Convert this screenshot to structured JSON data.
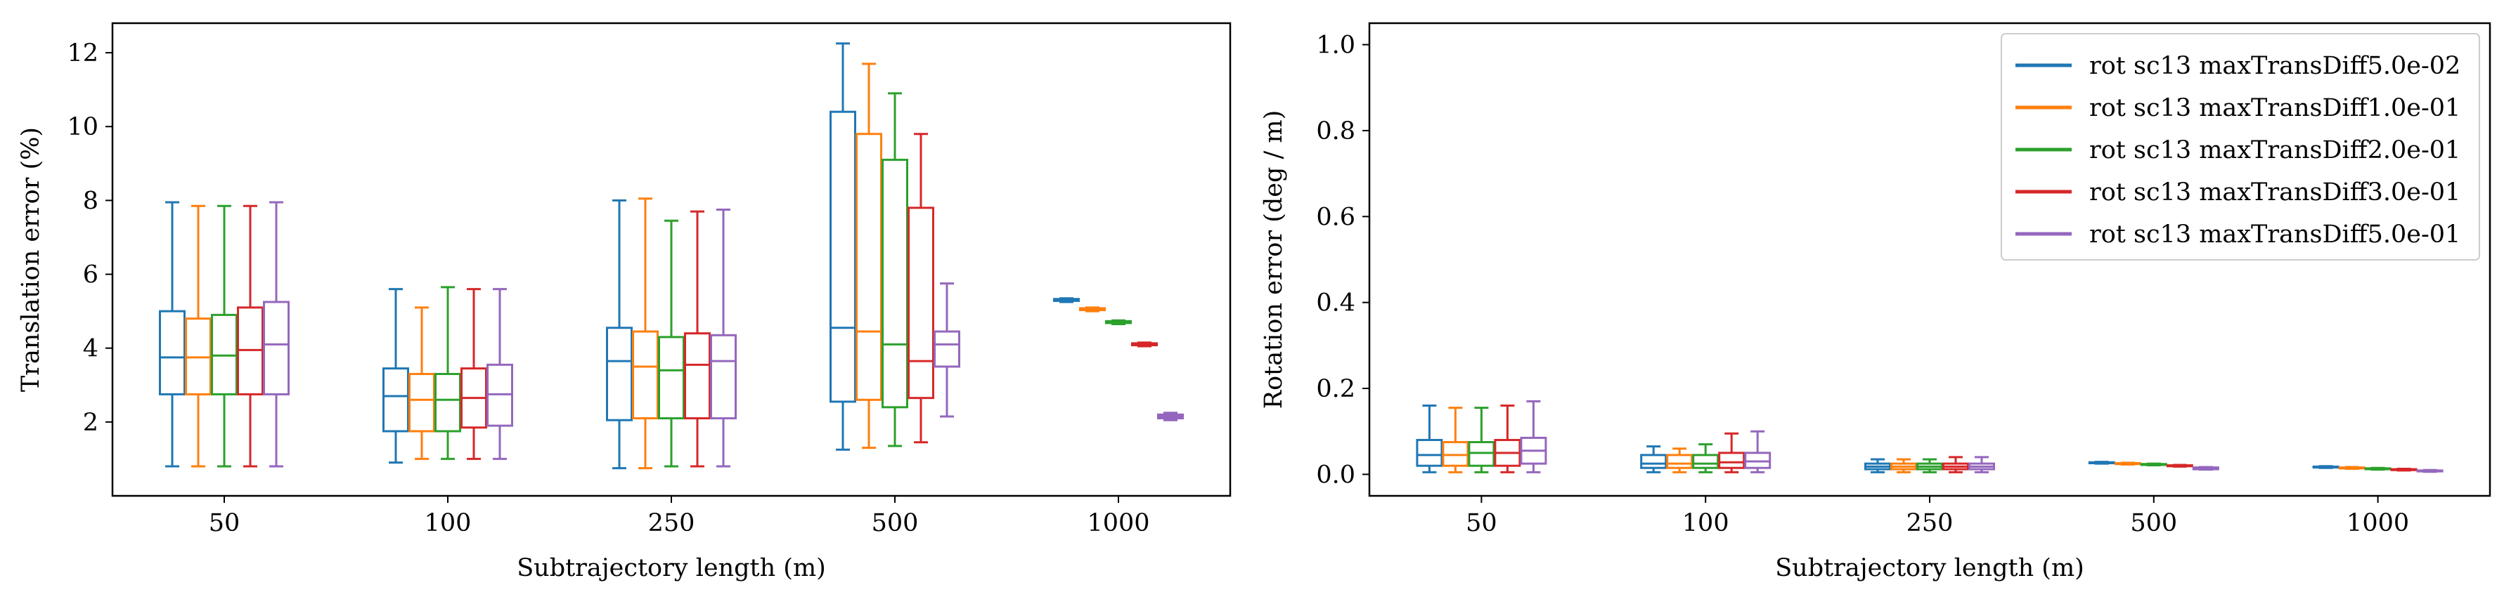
{
  "chart_data": [
    {
      "type": "box",
      "xlabel": "Subtrajectory length (m)",
      "ylabel": "Translation error (%)",
      "categories": [
        "50",
        "100",
        "250",
        "500",
        "1000"
      ],
      "ylim": [
        0,
        12.8
      ],
      "yticks": [
        2,
        4,
        6,
        8,
        10,
        12
      ],
      "yticklabels": [
        "2",
        "4",
        "6",
        "8",
        "10",
        "12"
      ],
      "series": [
        {
          "name": "rot sc13 maxTransDiff5.0e-02",
          "color": "#1f77b4",
          "boxes": [
            {
              "whislo": 0.8,
              "q1": 2.75,
              "med": 3.75,
              "q3": 5.0,
              "whishi": 7.95
            },
            {
              "whislo": 0.9,
              "q1": 1.75,
              "med": 2.7,
              "q3": 3.45,
              "whishi": 5.6
            },
            {
              "whislo": 0.75,
              "q1": 2.05,
              "med": 3.65,
              "q3": 4.55,
              "whishi": 8.0
            },
            {
              "whislo": 1.25,
              "q1": 2.55,
              "med": 4.55,
              "q3": 10.4,
              "whishi": 12.25
            },
            {
              "whislo": 5.25,
              "q1": 5.28,
              "med": 5.3,
              "q3": 5.33,
              "whishi": 5.35
            }
          ]
        },
        {
          "name": "rot sc13 maxTransDiff1.0e-01",
          "color": "#ff7f0e",
          "boxes": [
            {
              "whislo": 0.8,
              "q1": 2.75,
              "med": 3.75,
              "q3": 4.8,
              "whishi": 7.85
            },
            {
              "whislo": 1.0,
              "q1": 1.75,
              "med": 2.6,
              "q3": 3.3,
              "whishi": 5.1
            },
            {
              "whislo": 0.75,
              "q1": 2.1,
              "med": 3.5,
              "q3": 4.45,
              "whishi": 8.05
            },
            {
              "whislo": 1.3,
              "q1": 2.6,
              "med": 4.45,
              "q3": 9.8,
              "whishi": 11.7
            },
            {
              "whislo": 5.0,
              "q1": 5.03,
              "med": 5.05,
              "q3": 5.08,
              "whishi": 5.1
            }
          ]
        },
        {
          "name": "rot sc13 maxTransDiff2.0e-01",
          "color": "#2ca02c",
          "boxes": [
            {
              "whislo": 0.8,
              "q1": 2.75,
              "med": 3.8,
              "q3": 4.9,
              "whishi": 7.85
            },
            {
              "whislo": 1.0,
              "q1": 1.75,
              "med": 2.6,
              "q3": 3.3,
              "whishi": 5.65
            },
            {
              "whislo": 0.8,
              "q1": 2.1,
              "med": 3.4,
              "q3": 4.3,
              "whishi": 7.45
            },
            {
              "whislo": 1.35,
              "q1": 2.4,
              "med": 4.1,
              "q3": 9.1,
              "whishi": 10.9
            },
            {
              "whislo": 4.65,
              "q1": 4.68,
              "med": 4.7,
              "q3": 4.73,
              "whishi": 4.75
            }
          ]
        },
        {
          "name": "rot sc13 maxTransDiff3.0e-01",
          "color": "#d62728",
          "boxes": [
            {
              "whislo": 0.8,
              "q1": 2.75,
              "med": 3.95,
              "q3": 5.1,
              "whishi": 7.85
            },
            {
              "whislo": 1.0,
              "q1": 1.85,
              "med": 2.65,
              "q3": 3.45,
              "whishi": 5.6
            },
            {
              "whislo": 0.8,
              "q1": 2.1,
              "med": 3.55,
              "q3": 4.4,
              "whishi": 7.7
            },
            {
              "whislo": 1.45,
              "q1": 2.65,
              "med": 3.65,
              "q3": 7.8,
              "whishi": 9.8
            },
            {
              "whislo": 4.05,
              "q1": 4.08,
              "med": 4.1,
              "q3": 4.13,
              "whishi": 4.15
            }
          ]
        },
        {
          "name": "rot sc13 maxTransDiff5.0e-01",
          "color": "#9467bd",
          "boxes": [
            {
              "whislo": 0.8,
              "q1": 2.75,
              "med": 4.1,
              "q3": 5.25,
              "whishi": 7.95
            },
            {
              "whislo": 1.0,
              "q1": 1.9,
              "med": 2.75,
              "q3": 3.55,
              "whishi": 5.6
            },
            {
              "whislo": 0.8,
              "q1": 2.1,
              "med": 3.65,
              "q3": 4.35,
              "whishi": 7.75
            },
            {
              "whislo": 2.15,
              "q1": 3.5,
              "med": 4.1,
              "q3": 4.45,
              "whishi": 5.75
            },
            {
              "whislo": 2.05,
              "q1": 2.1,
              "med": 2.15,
              "q3": 2.2,
              "whishi": 2.25
            }
          ]
        }
      ]
    },
    {
      "type": "box",
      "xlabel": "Subtrajectory length (m)",
      "ylabel": "Rotation error (deg / m)",
      "categories": [
        "50",
        "100",
        "250",
        "500",
        "1000"
      ],
      "ylim": [
        -0.05,
        1.05
      ],
      "yticks": [
        0.0,
        0.2,
        0.4,
        0.6,
        0.8,
        1.0
      ],
      "yticklabels": [
        "0.0",
        "0.2",
        "0.4",
        "0.6",
        "0.8",
        "1.0"
      ],
      "legend": {
        "loc": "upper right"
      },
      "series": [
        {
          "name": "rot sc13 maxTransDiff5.0e-02",
          "color": "#1f77b4",
          "boxes": [
            {
              "whislo": 0.005,
              "q1": 0.02,
              "med": 0.045,
              "q3": 0.08,
              "whishi": 0.16
            },
            {
              "whislo": 0.005,
              "q1": 0.015,
              "med": 0.025,
              "q3": 0.045,
              "whishi": 0.065
            },
            {
              "whislo": 0.005,
              "q1": 0.012,
              "med": 0.018,
              "q3": 0.025,
              "whishi": 0.035
            },
            {
              "whislo": 0.025,
              "q1": 0.026,
              "med": 0.027,
              "q3": 0.028,
              "whishi": 0.029
            },
            {
              "whislo": 0.015,
              "q1": 0.016,
              "med": 0.017,
              "q3": 0.018,
              "whishi": 0.019
            }
          ]
        },
        {
          "name": "rot sc13 maxTransDiff1.0e-01",
          "color": "#ff7f0e",
          "boxes": [
            {
              "whislo": 0.005,
              "q1": 0.02,
              "med": 0.045,
              "q3": 0.075,
              "whishi": 0.155
            },
            {
              "whislo": 0.005,
              "q1": 0.015,
              "med": 0.025,
              "q3": 0.045,
              "whishi": 0.06
            },
            {
              "whislo": 0.005,
              "q1": 0.012,
              "med": 0.018,
              "q3": 0.025,
              "whishi": 0.035
            },
            {
              "whislo": 0.023,
              "q1": 0.024,
              "med": 0.025,
              "q3": 0.026,
              "whishi": 0.027
            },
            {
              "whislo": 0.013,
              "q1": 0.014,
              "med": 0.015,
              "q3": 0.016,
              "whishi": 0.017
            }
          ]
        },
        {
          "name": "rot sc13 maxTransDiff2.0e-01",
          "color": "#2ca02c",
          "boxes": [
            {
              "whislo": 0.005,
              "q1": 0.02,
              "med": 0.05,
              "q3": 0.075,
              "whishi": 0.155
            },
            {
              "whislo": 0.005,
              "q1": 0.015,
              "med": 0.025,
              "q3": 0.045,
              "whishi": 0.07
            },
            {
              "whislo": 0.005,
              "q1": 0.012,
              "med": 0.018,
              "q3": 0.025,
              "whishi": 0.035
            },
            {
              "whislo": 0.021,
              "q1": 0.022,
              "med": 0.023,
              "q3": 0.024,
              "whishi": 0.025
            },
            {
              "whislo": 0.011,
              "q1": 0.012,
              "med": 0.013,
              "q3": 0.014,
              "whishi": 0.015
            }
          ]
        },
        {
          "name": "rot sc13 maxTransDiff3.0e-01",
          "color": "#d62728",
          "boxes": [
            {
              "whislo": 0.005,
              "q1": 0.02,
              "med": 0.05,
              "q3": 0.08,
              "whishi": 0.16
            },
            {
              "whislo": 0.005,
              "q1": 0.015,
              "med": 0.028,
              "q3": 0.05,
              "whishi": 0.095
            },
            {
              "whislo": 0.005,
              "q1": 0.012,
              "med": 0.018,
              "q3": 0.025,
              "whishi": 0.04
            },
            {
              "whislo": 0.018,
              "q1": 0.019,
              "med": 0.02,
              "q3": 0.021,
              "whishi": 0.022
            },
            {
              "whislo": 0.009,
              "q1": 0.01,
              "med": 0.011,
              "q3": 0.012,
              "whishi": 0.013
            }
          ]
        },
        {
          "name": "rot sc13 maxTransDiff5.0e-01",
          "color": "#9467bd",
          "boxes": [
            {
              "whislo": 0.005,
              "q1": 0.025,
              "med": 0.055,
              "q3": 0.085,
              "whishi": 0.17
            },
            {
              "whislo": 0.005,
              "q1": 0.015,
              "med": 0.03,
              "q3": 0.05,
              "whishi": 0.1
            },
            {
              "whislo": 0.005,
              "q1": 0.012,
              "med": 0.018,
              "q3": 0.025,
              "whishi": 0.04
            },
            {
              "whislo": 0.011,
              "q1": 0.012,
              "med": 0.014,
              "q3": 0.016,
              "whishi": 0.017
            },
            {
              "whislo": 0.006,
              "q1": 0.007,
              "med": 0.008,
              "q3": 0.009,
              "whishi": 0.01
            }
          ]
        }
      ]
    }
  ]
}
